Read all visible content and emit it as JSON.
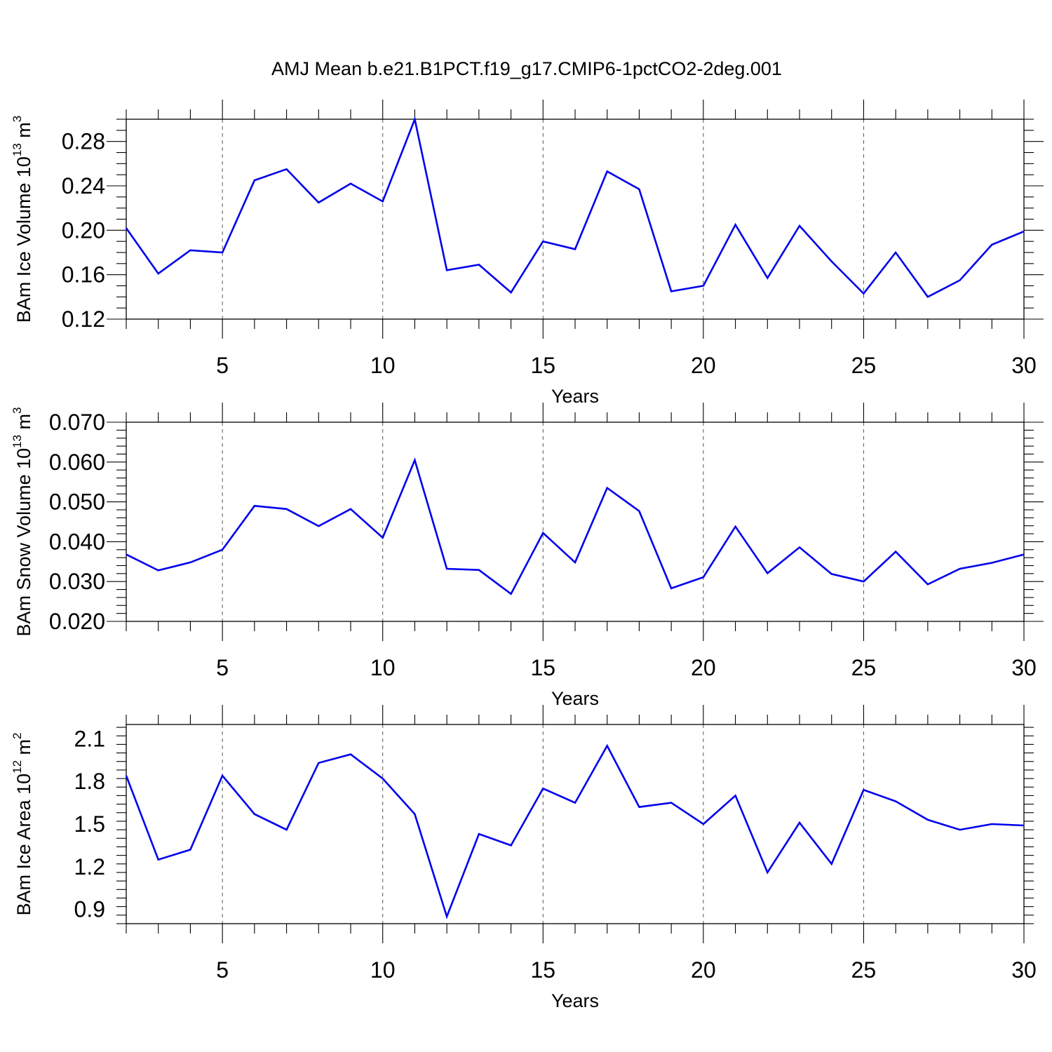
{
  "title": "AMJ Mean b.e21.B1PCT.f19_g17.CMIP6-1pctCO2-2deg.001",
  "chart_data": [
    {
      "type": "line",
      "ylabel_main": "BAm Ice Volume 10",
      "ylabel_exp": "13",
      "ylabel_unit": " m",
      "ylabel_unit_exp": "3",
      "xlabel": "Years",
      "xlim": [
        2,
        30
      ],
      "ylim": [
        0.12,
        0.3
      ],
      "x_ticks": [
        5,
        10,
        15,
        20,
        25,
        30
      ],
      "x_tick_labels": [
        "5",
        "10",
        "15",
        "20",
        "25",
        "30"
      ],
      "y_ticks": [
        0.12,
        0.16,
        0.2,
        0.24,
        0.28
      ],
      "y_tick_labels": [
        "0.12",
        "0.16",
        "0.20",
        "0.24",
        "0.28"
      ],
      "y_minor_step": 0.01,
      "grid_x": true,
      "line_color": "#0000ee",
      "x": [
        2,
        3,
        4,
        5,
        6,
        7,
        8,
        9,
        10,
        11,
        12,
        13,
        14,
        15,
        16,
        17,
        18,
        19,
        20,
        21,
        22,
        23,
        24,
        25,
        26,
        27,
        28,
        29,
        30
      ],
      "values": [
        0.202,
        0.161,
        0.182,
        0.18,
        0.245,
        0.255,
        0.225,
        0.242,
        0.226,
        0.3,
        0.164,
        0.169,
        0.144,
        0.19,
        0.183,
        0.253,
        0.237,
        0.145,
        0.15,
        0.205,
        0.157,
        0.204,
        0.172,
        0.143,
        0.18,
        0.14,
        0.155,
        0.187,
        0.199
      ]
    },
    {
      "type": "line",
      "ylabel_main": "BAm Snow Volume 10",
      "ylabel_exp": "13",
      "ylabel_unit": " m",
      "ylabel_unit_exp": "3",
      "xlabel": "Years",
      "xlim": [
        2,
        30
      ],
      "ylim": [
        0.02,
        0.07
      ],
      "x_ticks": [
        5,
        10,
        15,
        20,
        25,
        30
      ],
      "x_tick_labels": [
        "5",
        "10",
        "15",
        "20",
        "25",
        "30"
      ],
      "y_ticks": [
        0.02,
        0.03,
        0.04,
        0.05,
        0.06,
        0.07
      ],
      "y_tick_labels": [
        "0.020",
        "0.030",
        "0.040",
        "0.050",
        "0.060",
        "0.070"
      ],
      "y_minor_step": 0.002,
      "grid_x": true,
      "line_color": "#0000ee",
      "x": [
        2,
        3,
        4,
        5,
        6,
        7,
        8,
        9,
        10,
        11,
        12,
        13,
        14,
        15,
        16,
        17,
        18,
        19,
        20,
        21,
        22,
        23,
        24,
        25,
        26,
        27,
        28,
        29,
        30
      ],
      "values": [
        0.0368,
        0.0328,
        0.0348,
        0.038,
        0.049,
        0.0482,
        0.0439,
        0.0482,
        0.041,
        0.0605,
        0.0332,
        0.0329,
        0.0269,
        0.0422,
        0.0348,
        0.0535,
        0.0477,
        0.0283,
        0.0311,
        0.0438,
        0.0321,
        0.0386,
        0.0319,
        0.03,
        0.0375,
        0.0293,
        0.0332,
        0.0347,
        0.0368
      ]
    },
    {
      "type": "line",
      "ylabel_main": "BAm Ice Area 10",
      "ylabel_exp": "12",
      "ylabel_unit": " m",
      "ylabel_unit_exp": "2",
      "xlabel": "Years",
      "xlim": [
        2,
        30
      ],
      "ylim": [
        0.8,
        2.2
      ],
      "x_ticks": [
        5,
        10,
        15,
        20,
        25,
        30
      ],
      "x_tick_labels": [
        "5",
        "10",
        "15",
        "20",
        "25",
        "30"
      ],
      "y_ticks": [
        0.9,
        1.2,
        1.5,
        1.8,
        2.1
      ],
      "y_tick_labels": [
        "0.9",
        "1.2",
        "1.5",
        "1.8",
        "2.1"
      ],
      "y_minor_step": 0.06,
      "grid_x": true,
      "line_color": "#0000ee",
      "x": [
        2,
        3,
        4,
        5,
        6,
        7,
        8,
        9,
        10,
        11,
        12,
        13,
        14,
        15,
        16,
        17,
        18,
        19,
        20,
        21,
        22,
        23,
        24,
        25,
        26,
        27,
        28,
        29,
        30
      ],
      "values": [
        1.84,
        1.25,
        1.32,
        1.84,
        1.57,
        1.46,
        1.93,
        1.99,
        1.82,
        1.57,
        0.85,
        1.43,
        1.35,
        1.75,
        1.65,
        2.05,
        1.62,
        1.65,
        1.5,
        1.7,
        1.16,
        1.51,
        1.22,
        1.74,
        1.66,
        1.53,
        1.46,
        1.5,
        1.49
      ]
    }
  ]
}
